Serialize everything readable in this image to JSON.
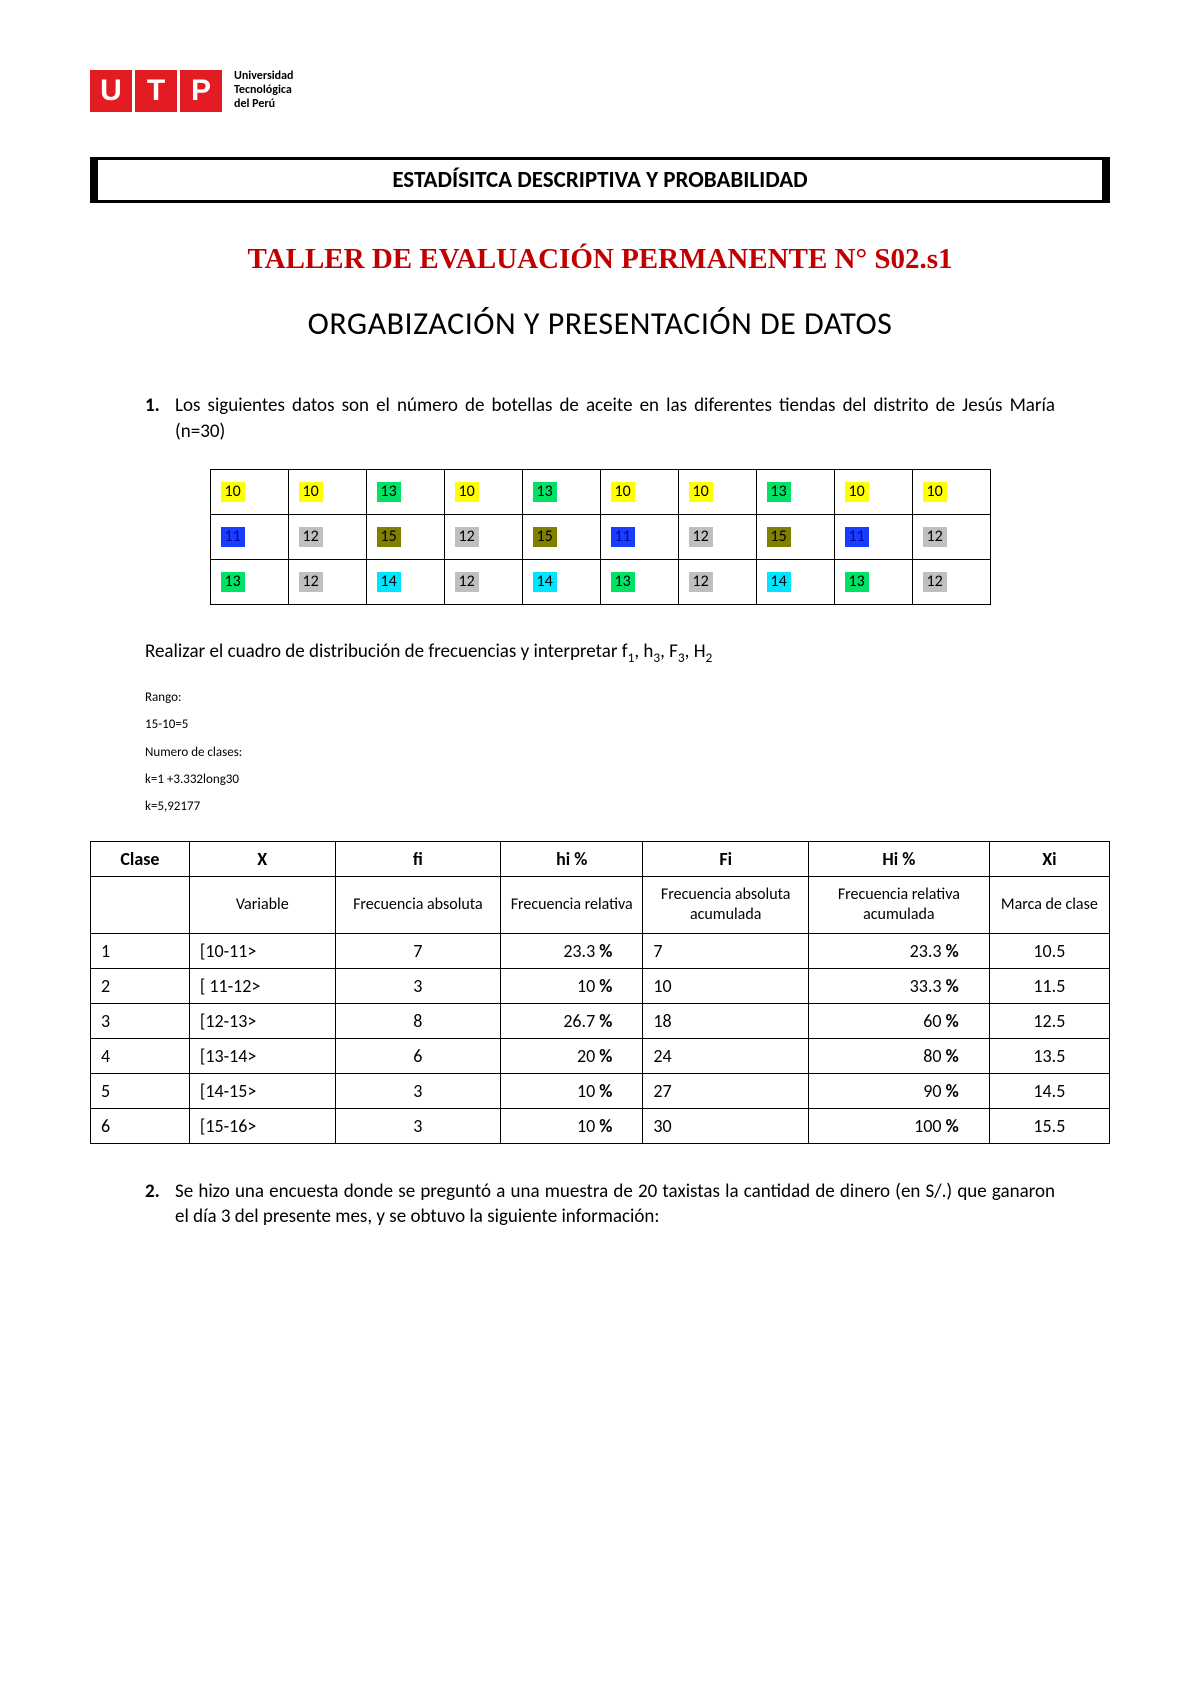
{
  "logo": {
    "letters": [
      "U",
      "T",
      "P"
    ],
    "text_lines": [
      "Universidad",
      "Tecnológica",
      "del Perú"
    ],
    "box_color": "#e31b23",
    "letter_color": "#ffffff"
  },
  "course_title": "ESTADÍSITCA DESCRIPTIVA Y PROBABILIDAD",
  "workshop_title": "TALLER DE EVALUACIÓN PERMANENTE N° S02.s1",
  "workshop_title_color": "#c00000",
  "topic_title": "ORGABIZACIÓN Y PRESENTACIÓN DE DATOS",
  "q1": {
    "number": "1.",
    "text": "Los siguientes datos son el número de botellas de aceite en las diferentes tiendas del distrito de Jesús María (n=30)"
  },
  "highlight_colors": {
    "yellow": "#ffff00",
    "green": "#00e266",
    "olive": "#7f7f00",
    "blue": "#1a3cff",
    "gray": "#bfbfbf",
    "cyan": "#00e5ff"
  },
  "data_grid": [
    [
      {
        "v": "10",
        "c": "yellow"
      },
      {
        "v": "10",
        "c": "yellow"
      },
      {
        "v": "13",
        "c": "green"
      },
      {
        "v": "10",
        "c": "yellow"
      },
      {
        "v": "13",
        "c": "green"
      },
      {
        "v": "10",
        "c": "yellow"
      },
      {
        "v": "10",
        "c": "yellow"
      },
      {
        "v": "13",
        "c": "green"
      },
      {
        "v": "10",
        "c": "yellow"
      },
      {
        "v": "10",
        "c": "yellow"
      }
    ],
    [
      {
        "v": "11",
        "c": "blue"
      },
      {
        "v": "12",
        "c": "gray"
      },
      {
        "v": "15",
        "c": "olive"
      },
      {
        "v": "12",
        "c": "gray"
      },
      {
        "v": "15",
        "c": "olive"
      },
      {
        "v": "11",
        "c": "blue"
      },
      {
        "v": "12",
        "c": "gray"
      },
      {
        "v": "15",
        "c": "olive"
      },
      {
        "v": "11",
        "c": "blue"
      },
      {
        "v": "12",
        "c": "gray"
      }
    ],
    [
      {
        "v": "13",
        "c": "green"
      },
      {
        "v": "12",
        "c": "gray"
      },
      {
        "v": "14",
        "c": "cyan"
      },
      {
        "v": "12",
        "c": "gray"
      },
      {
        "v": "14",
        "c": "cyan"
      },
      {
        "v": "13",
        "c": "green"
      },
      {
        "v": "12",
        "c": "gray"
      },
      {
        "v": "14",
        "c": "cyan"
      },
      {
        "v": "13",
        "c": "green"
      },
      {
        "v": "12",
        "c": "gray"
      }
    ]
  ],
  "instruction_prefix": "Realizar el cuadro de distribución de frecuencias y interpretar f",
  "instruction_subs": [
    "1",
    "3",
    "3",
    "2"
  ],
  "instruction_letters": [
    ", h",
    ", F",
    ", H"
  ],
  "calc": {
    "l1": "Rango:",
    "l2": "15-10=5",
    "l3": "Numero de clases:",
    "l4": "k=1 +3.332long30",
    "l5": "k=5,92177"
  },
  "freq_headers": [
    "Clase",
    "X",
    "fi",
    "hi %",
    "Fi",
    "Hi %",
    "Xi"
  ],
  "freq_sublabels": [
    "",
    "Variable",
    "Frecuencia absoluta",
    "Frecuencia relativa",
    "Frecuencia absoluta acumulada",
    "Frecuencia relativa acumulada",
    "Marca de clase"
  ],
  "freq_rows": [
    {
      "clase": "1",
      "x": "[10-11>",
      "fi": "7",
      "hi": "23.3",
      "Fi": "7",
      "Hi": "23.3",
      "Xi": "10.5"
    },
    {
      "clase": "2",
      "x": "[ 11-12>",
      "fi": "3",
      "hi": "10",
      "Fi": "10",
      "Hi": "33.3",
      "Xi": "11.5"
    },
    {
      "clase": "3",
      "x": "[12-13>",
      "fi": "8",
      "hi": "26.7",
      "Fi": "18",
      "Hi": "60",
      "Xi": "12.5"
    },
    {
      "clase": "4",
      "x": "[13-14>",
      "fi": "6",
      "hi": "20",
      "Fi": "24",
      "Hi": "80",
      "Xi": "13.5"
    },
    {
      "clase": "5",
      "x": "[14-15>",
      "fi": "3",
      "hi": "10",
      "Fi": "27",
      "Hi": "90",
      "Xi": "14.5"
    },
    {
      "clase": "6",
      "x": "[15-16>",
      "fi": "3",
      "hi": "10",
      "Fi": "30",
      "Hi": "100",
      "Xi": "15.5"
    }
  ],
  "freq_col_widths": [
    "90px",
    "150px",
    "170px",
    "140px",
    "170px",
    "190px",
    "120px"
  ],
  "pct_symbol": "%",
  "q2": {
    "number": "2.",
    "text": "Se hizo una encuesta donde se preguntó a una muestra de 20 taxistas la cantidad de dinero (en S/.) que ganaron el día 3 del presente mes, y se obtuvo la siguiente información:"
  }
}
